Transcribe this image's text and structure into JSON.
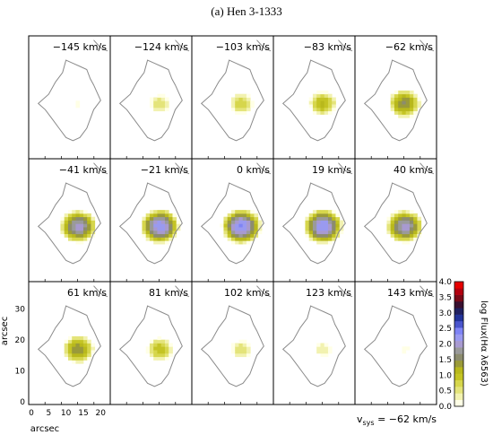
{
  "figure": {
    "title": "(a) Hen 3-1333",
    "x_axis_label": "arcsec",
    "y_axis_label": "arcsec",
    "x_ticks": [
      "0",
      "5",
      "10",
      "15",
      "20"
    ],
    "y_ticks": [
      "0",
      "10",
      "20",
      "30"
    ],
    "vsys_prefix": "v",
    "vsys_subscript": "sys",
    "vsys_value": " = −62 km/s"
  },
  "chart_data": {
    "type": "heatmap",
    "title": "(a) Hen 3-1333",
    "xlabel": "arcsec",
    "ylabel": "arcsec",
    "xlim": [
      0,
      22
    ],
    "ylim": [
      0,
      38
    ],
    "colorbar": {
      "label": "log Flux(Hα λ6563)",
      "ticks": [
        "0.0",
        "0.5",
        "1.0",
        "1.5",
        "2.0",
        "2.5",
        "3.0",
        "3.5",
        "4.0"
      ],
      "range": [
        0.0,
        4.0
      ],
      "colors": [
        "#ffffe6",
        "#f2f2b0",
        "#e4e47a",
        "#d6d64c",
        "#c4c424",
        "#b8b81c",
        "#9a9a3a",
        "#8c8c6e",
        "#9a9a9a",
        "#a89ad0",
        "#9a9af0",
        "#7f84f5",
        "#4a55cc",
        "#223399",
        "#202060",
        "#3a1030",
        "#7a0a18",
        "#b3000f",
        "#e60000"
      ]
    },
    "panels": [
      {
        "velocity": "−145 km/s",
        "peak": 0.1
      },
      {
        "velocity": "−124 km/s",
        "peak": 0.6
      },
      {
        "velocity": "−103 km/s",
        "peak": 0.8
      },
      {
        "velocity": "−83 km/s",
        "peak": 1.1
      },
      {
        "velocity": "−62 km/s",
        "peak": 1.5
      },
      {
        "velocity": "−41 km/s",
        "peak": 2.0
      },
      {
        "velocity": "−21 km/s",
        "peak": 2.25
      },
      {
        "velocity": "0 km/s",
        "peak": 2.35
      },
      {
        "velocity": "19 km/s",
        "peak": 2.3
      },
      {
        "velocity": "40 km/s",
        "peak": 2.0
      },
      {
        "velocity": "61 km/s",
        "peak": 1.45
      },
      {
        "velocity": "81 km/s",
        "peak": 1.0
      },
      {
        "velocity": "102 km/s",
        "peak": 0.6
      },
      {
        "velocity": "123 km/s",
        "peak": 0.4
      },
      {
        "velocity": "143 km/s",
        "peak": 0.15
      }
    ]
  }
}
